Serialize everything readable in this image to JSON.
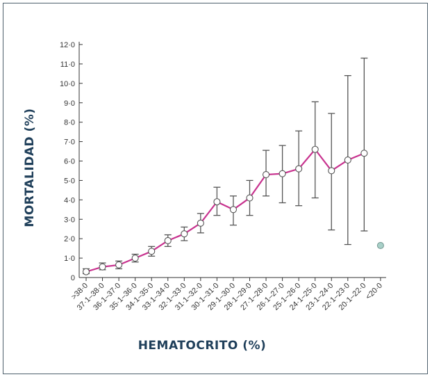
{
  "chart_data": {
    "type": "line",
    "xlabel": "HEMATOCRITO (%)",
    "ylabel": "MORTALIDAD (%)",
    "ylim": [
      0,
      12
    ],
    "yticks": [
      0,
      1,
      2,
      3,
      4,
      5,
      6,
      7,
      8,
      9,
      10,
      11,
      12
    ],
    "ytick_labels": [
      "0",
      "1·0",
      "2·0",
      "3·0",
      "4·0",
      "5·0",
      "6·0",
      "7·0",
      "8·0",
      "9·0",
      "10·0",
      "11·0",
      "12·0"
    ],
    "categories": [
      ">38·0",
      "37·1–38·0",
      "36·1–37·0",
      "35·1–36·0",
      "34·1–35·0",
      "33·1–34·0",
      "32·1–33·0",
      "31·1–32·0",
      "30·1–31·0",
      "29·1–30·0",
      "28·1–29·0",
      "27·1–28·0",
      "26·1–27·0",
      "25·1–26·0",
      "24·1–25·0",
      "23·1–24·0",
      "22·1–23·0",
      "20·1–22·0",
      "<20·0"
    ],
    "series": [
      {
        "values": [
          0.3,
          0.55,
          0.65,
          1.0,
          1.35,
          1.9,
          2.25,
          2.8,
          3.9,
          3.5,
          4.1,
          5.3,
          5.35,
          5.6,
          6.6,
          5.5,
          6.05,
          6.4,
          1.65
        ],
        "error_low": [
          0.2,
          0.4,
          0.45,
          0.8,
          1.1,
          1.6,
          1.9,
          2.3,
          3.2,
          2.7,
          3.2,
          4.2,
          3.85,
          3.7,
          4.1,
          2.45,
          1.7,
          2.4,
          null
        ],
        "error_high": [
          0.45,
          0.75,
          0.85,
          1.2,
          1.6,
          2.2,
          2.6,
          3.3,
          4.65,
          4.2,
          5.0,
          6.55,
          6.8,
          7.55,
          9.05,
          8.45,
          10.4,
          11.3,
          null
        ]
      }
    ],
    "colors": {
      "line": "#c8338f",
      "marker_fill": "#ffffff",
      "marker_edge": "#555555",
      "error_bar": "#555555",
      "outlier_fill": "#a8d0c8",
      "axis": "#333333",
      "axis_title": "#1f3f5a",
      "frame": "#4d5f6b"
    },
    "grid": false,
    "legend": "none"
  }
}
